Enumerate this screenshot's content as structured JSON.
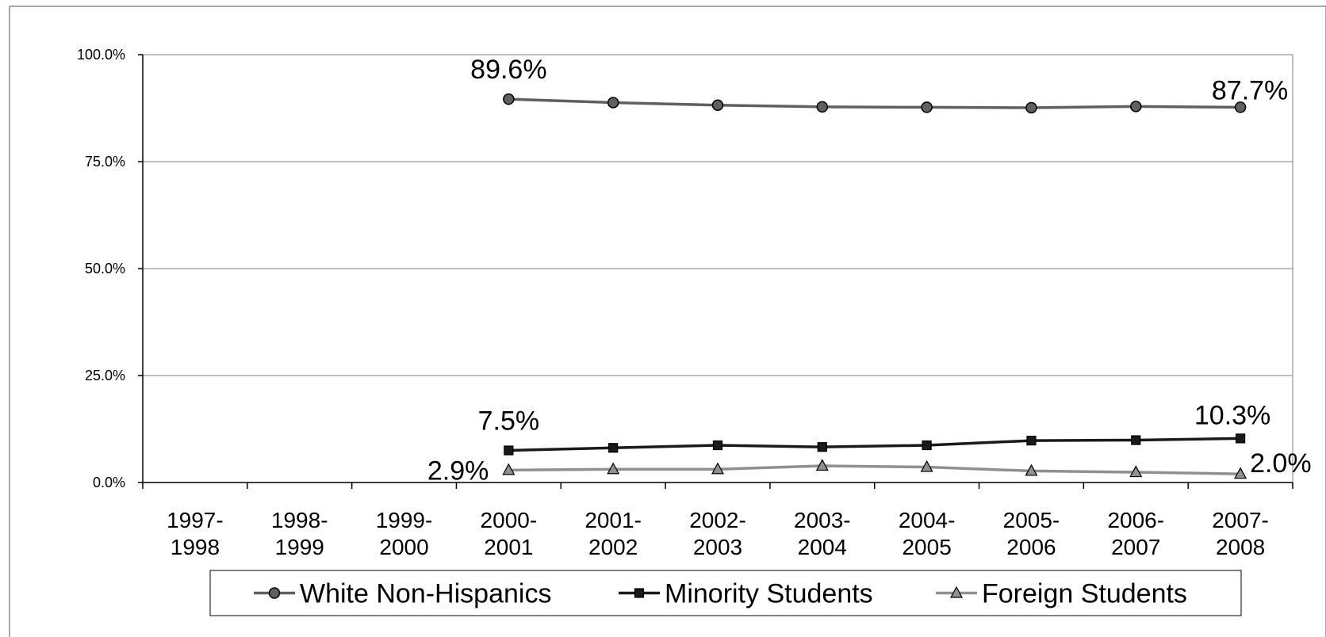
{
  "chart_data": {
    "type": "line",
    "title": "",
    "xlabel": "",
    "ylabel": "",
    "categories": [
      "1997-1998",
      "1998-1999",
      "1999-2000",
      "2000-2001",
      "2001-2002",
      "2002-2003",
      "2003-2004",
      "2004-2005",
      "2005-2006",
      "2006-2007",
      "2007-2008"
    ],
    "y_ticks": [
      "0.0%",
      "25.0%",
      "50.0%",
      "75.0%",
      "100.0%"
    ],
    "ylim": [
      0,
      100
    ],
    "grid": true,
    "legend_position": "bottom",
    "series": [
      {
        "name": "White Non-Hispanics",
        "color": "#606060",
        "marker": "circle",
        "values": [
          null,
          null,
          null,
          89.6,
          88.8,
          88.2,
          87.8,
          87.7,
          87.6,
          87.9,
          87.7
        ],
        "labels": [
          {
            "index": 3,
            "text": "89.6%"
          },
          {
            "index": 10,
            "text": "87.7%"
          }
        ]
      },
      {
        "name": "Minority Students",
        "color": "#1a1a1a",
        "marker": "square",
        "values": [
          null,
          null,
          null,
          7.5,
          8.1,
          8.7,
          8.3,
          8.7,
          9.8,
          9.9,
          10.3
        ],
        "labels": [
          {
            "index": 3,
            "text": "7.5%"
          },
          {
            "index": 10,
            "text": "10.3%"
          }
        ]
      },
      {
        "name": "Foreign Students",
        "color": "#909090",
        "marker": "triangle",
        "values": [
          null,
          null,
          null,
          2.9,
          3.1,
          3.1,
          3.9,
          3.6,
          2.7,
          2.4,
          2.0
        ],
        "labels": [
          {
            "index": 3,
            "text": "2.9%"
          },
          {
            "index": 10,
            "text": "2.0%"
          }
        ]
      }
    ]
  }
}
